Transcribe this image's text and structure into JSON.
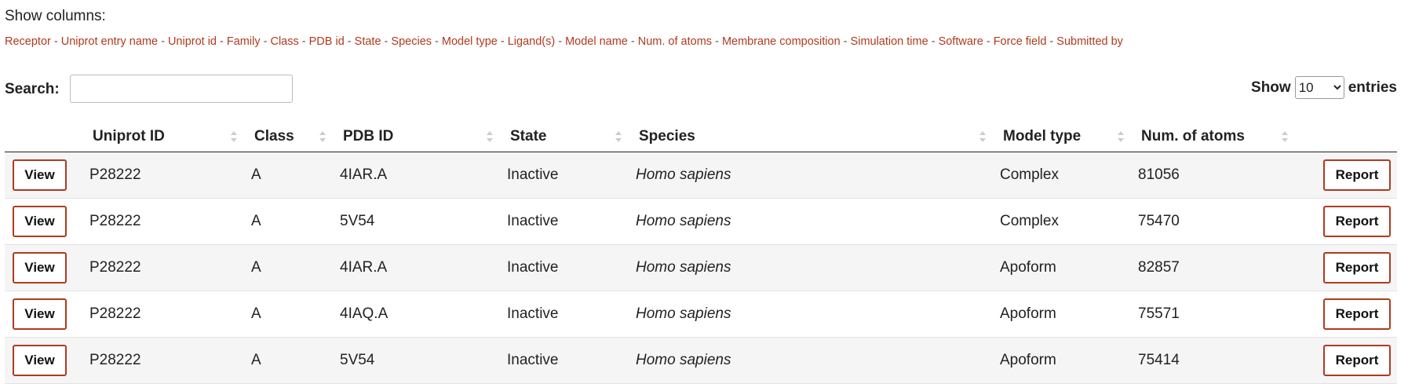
{
  "show_columns": {
    "title": "Show columns:",
    "toggles": [
      "Receptor",
      "Uniprot entry name",
      "Uniprot id",
      "Family",
      "Class",
      "PDB id",
      "State",
      "Species",
      "Model type",
      "Ligand(s)",
      "Model name",
      "Num. of atoms",
      "Membrane composition",
      "Simulation time",
      "Software",
      "Force field",
      "Submitted by"
    ],
    "separator": " - "
  },
  "search": {
    "label": "Search:",
    "value": "",
    "placeholder": ""
  },
  "length": {
    "prefix": "Show",
    "selected": "10",
    "suffix": "entries"
  },
  "table": {
    "headers": [
      "Uniprot ID",
      "Class",
      "PDB ID",
      "State",
      "Species",
      "Model type",
      "Num. of atoms"
    ],
    "view_label": "View",
    "report_label": "Report",
    "rows": [
      {
        "uniprot": "P28222",
        "class": "A",
        "pdb": "4IAR.A",
        "state": "Inactive",
        "species": "Homo sapiens",
        "model_type": "Complex",
        "atoms": "81056"
      },
      {
        "uniprot": "P28222",
        "class": "A",
        "pdb": "5V54",
        "state": "Inactive",
        "species": "Homo sapiens",
        "model_type": "Complex",
        "atoms": "75470"
      },
      {
        "uniprot": "P28222",
        "class": "A",
        "pdb": "4IAR.A",
        "state": "Inactive",
        "species": "Homo sapiens",
        "model_type": "Apoform",
        "atoms": "82857"
      },
      {
        "uniprot": "P28222",
        "class": "A",
        "pdb": "4IAQ.A",
        "state": "Inactive",
        "species": "Homo sapiens",
        "model_type": "Apoform",
        "atoms": "75571"
      },
      {
        "uniprot": "P28222",
        "class": "A",
        "pdb": "5V54",
        "state": "Inactive",
        "species": "Homo sapiens",
        "model_type": "Apoform",
        "atoms": "75414"
      }
    ]
  },
  "colors": {
    "accent": "#b03a1f",
    "row_stripe": "#f5f5f5"
  }
}
